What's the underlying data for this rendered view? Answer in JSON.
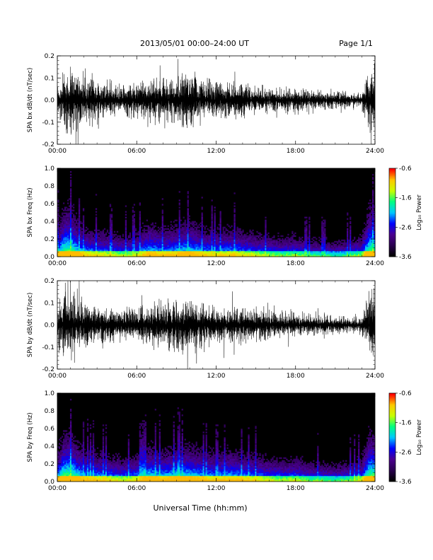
{
  "header": {
    "title": "2013/05/01  00:00–24:00 UT",
    "page": "Page 1/1"
  },
  "xlabel": "Universal Time (hh:mm)",
  "chart_data": [
    {
      "type": "line",
      "name": "bx-waveform",
      "ylabel": "SPA bx dB/dt (nT/sec)",
      "xlim": [
        "00:00",
        "24:00"
      ],
      "ylim": [
        -0.2,
        0.2
      ],
      "x_ticks": [
        "00:00",
        "06:00",
        "12:00",
        "18:00",
        "24:00"
      ],
      "y_ticks": [
        "-0.2",
        "-0.1",
        "0.0",
        "0.1",
        "0.2"
      ],
      "amplitude_envelope": {
        "hours": [
          0,
          0.5,
          1,
          1.5,
          2,
          3,
          4,
          5,
          6,
          7,
          8,
          9,
          10,
          11,
          12,
          13,
          14,
          15,
          16,
          17,
          18,
          19,
          20,
          21,
          22,
          23,
          23.6,
          24
        ],
        "amplitude": [
          0.09,
          0.2,
          0.2,
          0.19,
          0.14,
          0.12,
          0.11,
          0.09,
          0.1,
          0.12,
          0.12,
          0.14,
          0.15,
          0.12,
          0.1,
          0.11,
          0.1,
          0.08,
          0.07,
          0.06,
          0.08,
          0.06,
          0.05,
          0.05,
          0.045,
          0.05,
          0.2,
          0.2
        ]
      }
    },
    {
      "type": "heatmap",
      "name": "bx-spectrogram",
      "ylabel": "SPA bx Freq (Hz)",
      "xlim": [
        "00:00",
        "24:00"
      ],
      "ylim": [
        0.0,
        1.0
      ],
      "x_ticks": [
        "00:00",
        "06:00",
        "12:00",
        "18:00",
        "24:00"
      ],
      "y_ticks": [
        "0.0",
        "0.2",
        "0.4",
        "0.6",
        "0.8",
        "1.0"
      ],
      "colorbar": {
        "label": "Log₁₀ Power",
        "ticks": [
          "-0.6",
          "-1.6",
          "-2.6",
          "-3.6"
        ],
        "range": [
          -3.6,
          -0.6
        ]
      },
      "activity": {
        "hours": [
          0,
          0.5,
          1,
          1.5,
          2,
          3,
          4,
          5,
          6,
          7,
          7.5,
          8,
          9,
          10,
          11,
          12,
          13,
          14,
          15,
          16,
          17,
          18,
          19,
          20,
          21,
          22,
          23,
          23.6,
          24
        ],
        "level": [
          0.55,
          0.9,
          0.95,
          0.7,
          0.55,
          0.5,
          0.45,
          0.4,
          0.45,
          0.65,
          0.6,
          0.55,
          0.6,
          0.7,
          0.55,
          0.5,
          0.55,
          0.5,
          0.45,
          0.4,
          0.35,
          0.4,
          0.3,
          0.3,
          0.25,
          0.3,
          0.4,
          0.95,
          0.9
        ]
      }
    },
    {
      "type": "line",
      "name": "by-waveform",
      "ylabel": "SPA by dB/dt (nT/sec)",
      "xlim": [
        "00:00",
        "24:00"
      ],
      "ylim": [
        -0.2,
        0.2
      ],
      "x_ticks": [
        "00:00",
        "06:00",
        "12:00",
        "18:00",
        "24:00"
      ],
      "y_ticks": [
        "-0.2",
        "-0.1",
        "0.0",
        "0.1",
        "0.2"
      ],
      "amplitude_envelope": {
        "hours": [
          0,
          0.5,
          1,
          1.5,
          2,
          3,
          4,
          5,
          6,
          7,
          8,
          9,
          10,
          11,
          12,
          13,
          14,
          15,
          16,
          17,
          18,
          19,
          20,
          21,
          22,
          23,
          23.6,
          24
        ],
        "amplitude": [
          0.1,
          0.2,
          0.2,
          0.18,
          0.13,
          0.12,
          0.11,
          0.09,
          0.1,
          0.13,
          0.13,
          0.15,
          0.15,
          0.12,
          0.1,
          0.11,
          0.1,
          0.09,
          0.08,
          0.07,
          0.07,
          0.06,
          0.055,
          0.05,
          0.045,
          0.05,
          0.2,
          0.2
        ]
      }
    },
    {
      "type": "heatmap",
      "name": "by-spectrogram",
      "ylabel": "SPA by Freq (Hz)",
      "xlim": [
        "00:00",
        "24:00"
      ],
      "ylim": [
        0.0,
        1.0
      ],
      "x_ticks": [
        "00:00",
        "06:00",
        "12:00",
        "18:00",
        "24:00"
      ],
      "y_ticks": [
        "0.0",
        "0.2",
        "0.4",
        "0.6",
        "0.8",
        "1.0"
      ],
      "colorbar": {
        "label": "Log₁₀ Power",
        "ticks": [
          "-0.6",
          "-1.6",
          "-2.6",
          "-3.6"
        ],
        "range": [
          -3.6,
          -0.6
        ]
      },
      "activity": {
        "hours": [
          0,
          0.5,
          1,
          1.5,
          2,
          3,
          4,
          5,
          6,
          7,
          7.5,
          8,
          9,
          10,
          11,
          12,
          13,
          14,
          15,
          16,
          17,
          18,
          19,
          20,
          21,
          22,
          23,
          23.6,
          24
        ],
        "level": [
          0.6,
          0.9,
          0.95,
          0.75,
          0.6,
          0.55,
          0.5,
          0.45,
          0.5,
          0.7,
          0.65,
          0.6,
          0.7,
          0.7,
          0.6,
          0.55,
          0.6,
          0.55,
          0.5,
          0.45,
          0.4,
          0.45,
          0.35,
          0.35,
          0.3,
          0.35,
          0.45,
          0.95,
          0.9
        ]
      }
    }
  ],
  "colors": {
    "waveform": "#000000",
    "background": "#000000",
    "colormap": [
      "#000000",
      "#2a004f",
      "#4b0090",
      "#0000ff",
      "#00c8ff",
      "#00ff80",
      "#c8ff00",
      "#ffc800",
      "#ff0000"
    ]
  }
}
